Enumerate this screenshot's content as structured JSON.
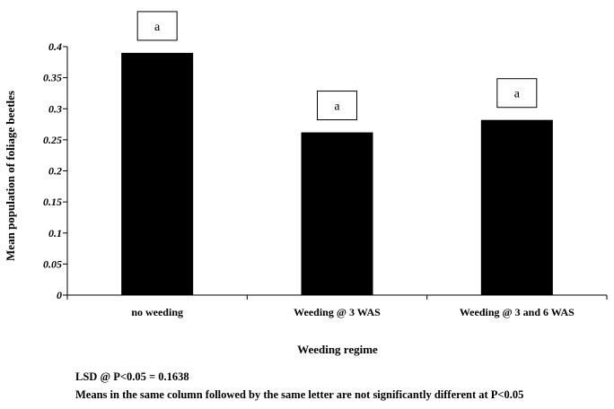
{
  "chart_data": {
    "type": "bar",
    "categories": [
      "no weeding",
      "Weeding @ 3 WAS",
      "Weeding @ 3 and 6 WAS"
    ],
    "values": [
      0.39,
      0.262,
      0.282
    ],
    "letters": [
      "a",
      "a",
      "a"
    ],
    "xlabel": "Weeding regime",
    "ylabel": "Mean population of foliage beetles",
    "ylim": [
      0,
      0.4
    ],
    "yticks": [
      "0",
      "0.05",
      "0.1",
      "0.15",
      "0.2",
      "0.25",
      "0.3",
      "0.35",
      "0.4"
    ],
    "bar_color": "#000000",
    "grid": false,
    "legend": "none"
  },
  "notes": {
    "lsd": "LSD @ P<0.05 = 0.1638",
    "footnote": "Means in the same column followed by the same letter are not significantly different at P<0.05"
  }
}
